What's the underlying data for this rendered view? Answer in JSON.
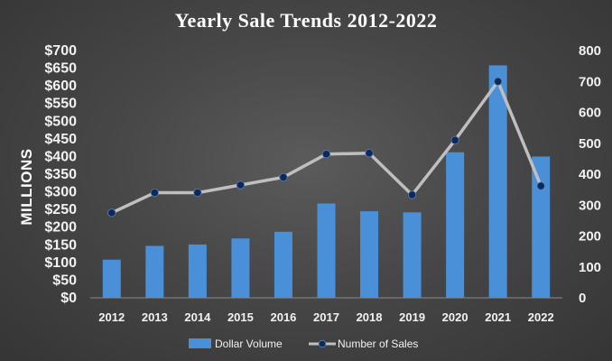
{
  "chart_data": {
    "type": "bar",
    "title": "Yearly Sale Trends 2012-2022",
    "xlabel": "",
    "ylabel": "MILLIONS",
    "categories": [
      "2012",
      "2013",
      "2014",
      "2015",
      "2016",
      "2017",
      "2018",
      "2019",
      "2020",
      "2021",
      "2022"
    ],
    "series": [
      {
        "name": "Dollar Volume",
        "type": "bar",
        "axis": "left",
        "color": "#4a90d9",
        "values": [
          108,
          147,
          151,
          168,
          187,
          267,
          245,
          242,
          412,
          658,
          400
        ]
      },
      {
        "name": "Number of Sales",
        "type": "line",
        "axis": "right",
        "line_color": "#bfbfbf",
        "marker_color": "#0b2a5c",
        "values": [
          275,
          340,
          340,
          365,
          390,
          465,
          468,
          333,
          510,
          700,
          362
        ]
      }
    ],
    "ylim": [
      0,
      700
    ],
    "y_ticks": [
      "$0",
      "$50",
      "$100",
      "$150",
      "$200",
      "$250",
      "$300",
      "$350",
      "$400",
      "$450",
      "$500",
      "$550",
      "$600",
      "$650",
      "$700"
    ],
    "y2lim": [
      0,
      800
    ],
    "y2_ticks": [
      "0",
      "100",
      "200",
      "300",
      "400",
      "500",
      "600",
      "700",
      "800"
    ],
    "grid": false,
    "legend_position": "bottom"
  }
}
